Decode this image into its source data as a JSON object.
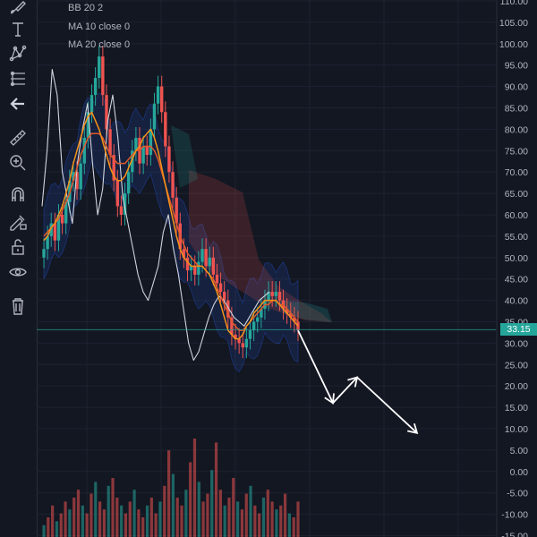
{
  "legend": {
    "bb": "BB 20 2",
    "ma10": "MA 10 close 0",
    "ma20": "MA 20 close 0"
  },
  "toolbar": {
    "tools": [
      "brush-icon",
      "text-tool-icon",
      "pattern-icon",
      "measure-lines-icon",
      "arrow-left-icon",
      "ruler-icon",
      "zoom-in-icon",
      "magnet-icon",
      "lock-pencil-icon",
      "lock-open-icon",
      "eye-icon",
      "trash-icon"
    ]
  },
  "price_badge": "33.15",
  "colors": {
    "background": "#131722",
    "up": "#26a69a",
    "down": "#ef5350",
    "ma10": "#f7931a",
    "ma20": "#e05a2b",
    "bb": "#2962ff",
    "projection": "#ffffff",
    "grid": "#1e2230"
  },
  "chart_data": {
    "type": "line",
    "title": "",
    "xlabel": "",
    "ylabel": "",
    "y_axis_ticks": [
      "110.00",
      "105.00",
      "100.00",
      "95.00",
      "90.00",
      "85.00",
      "80.00",
      "75.00",
      "70.00",
      "65.00",
      "60.00",
      "55.00",
      "50.00",
      "45.00",
      "40.00",
      "35.00",
      "30.00",
      "25.00",
      "20.00",
      "15.00",
      "10.00",
      "5.00",
      "0.00",
      "-5.00",
      "-10.00",
      "-15.00"
    ],
    "ylim": [
      -15,
      110
    ],
    "last_price": 33.15,
    "grid": true,
    "series": [
      {
        "name": "",
        "kind": "close",
        "values": [
          52,
          55,
          58,
          54,
          60,
          58,
          63,
          68,
          70,
          66,
          72,
          78,
          84,
          88,
          92,
          97,
          88,
          80,
          74,
          68,
          62,
          60,
          65,
          70,
          75,
          78,
          72,
          76,
          74,
          80,
          86,
          90,
          84,
          76,
          70,
          64,
          58,
          52,
          50,
          47,
          48,
          46,
          49,
          52,
          48,
          50,
          46,
          44,
          42,
          40,
          36,
          32,
          31,
          30,
          29,
          31,
          33,
          35,
          36,
          38,
          40,
          42,
          41,
          42,
          40,
          38,
          37,
          36,
          35,
          33
        ]
      },
      {
        "name": "MA 10 close 0",
        "kind": "ma10",
        "values": [
          54,
          55,
          57,
          58,
          60,
          62,
          65,
          68,
          72,
          75,
          78,
          81,
          83,
          84,
          82,
          80,
          77,
          74,
          71,
          69,
          68,
          68,
          69,
          71,
          73,
          75,
          76,
          78,
          79,
          80,
          78,
          75,
          71,
          67,
          63,
          59,
          55,
          52,
          50,
          49,
          48,
          48,
          48,
          48,
          47,
          46,
          44,
          42,
          39,
          36,
          33,
          32,
          31,
          31,
          32,
          34,
          35,
          37,
          38,
          39,
          40,
          40,
          40,
          40,
          39,
          38,
          37,
          36,
          35,
          34
        ]
      },
      {
        "name": "MA 20 close 0",
        "kind": "ma20",
        "values": [
          55,
          56,
          57,
          58,
          59,
          61,
          63,
          65,
          68,
          71,
          74,
          76,
          78,
          79,
          79,
          79,
          78,
          76,
          74,
          73,
          72,
          72,
          72,
          73,
          74,
          75,
          75,
          76,
          76,
          76,
          75,
          73,
          70,
          67,
          64,
          61,
          58,
          55,
          53,
          51,
          50,
          49,
          48,
          48,
          47,
          46,
          45,
          43,
          41,
          39,
          37,
          35,
          34,
          33,
          33,
          34,
          35,
          36,
          37,
          38,
          39,
          39,
          40,
          40,
          39,
          39,
          38,
          37,
          36,
          35
        ]
      },
      {
        "name": "",
        "kind": "comparison",
        "values": [
          62,
          75,
          94,
          88,
          70,
          64,
          58,
          72,
          80,
          86,
          72,
          60,
          66,
          82,
          88,
          78,
          64,
          58,
          52,
          46,
          42,
          40,
          44,
          48,
          56,
          60,
          52,
          46,
          38,
          30,
          26,
          28,
          32,
          36,
          39,
          41,
          40,
          38,
          36,
          35,
          34,
          36,
          38,
          40,
          41,
          42
        ]
      }
    ],
    "projection": {
      "kind": "arrow path",
      "points": [
        [
          0,
          33
        ],
        [
          1,
          16
        ],
        [
          2,
          22
        ],
        [
          3,
          9
        ]
      ]
    },
    "volume": {
      "values": [
        3,
        5,
        8,
        4,
        6,
        9,
        7,
        10,
        12,
        8,
        6,
        11,
        14,
        9,
        7,
        13,
        15,
        10,
        8,
        6,
        9,
        12,
        7,
        5,
        8,
        10,
        6,
        9,
        13,
        22,
        16,
        10,
        8,
        12,
        19,
        25,
        14,
        9,
        11,
        17,
        24,
        12,
        8,
        10,
        15,
        9,
        7,
        11,
        13,
        8,
        6,
        10,
        12,
        9,
        7,
        8,
        11,
        6,
        5,
        9
      ]
    }
  }
}
